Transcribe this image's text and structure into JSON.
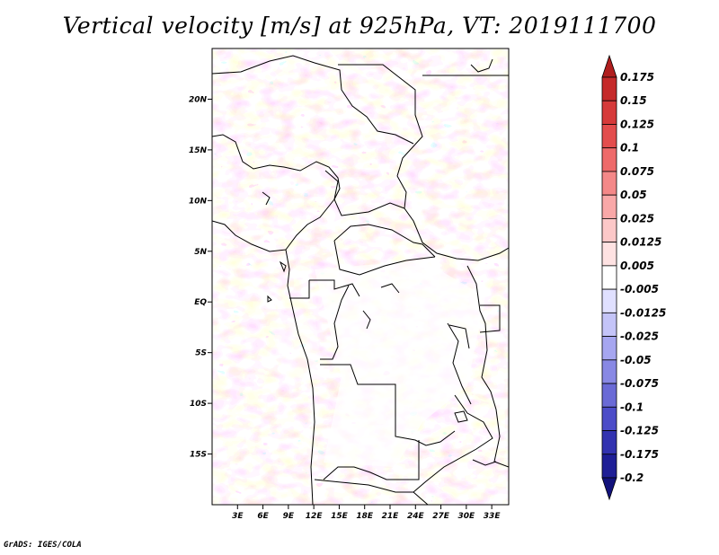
{
  "title": "Vertical velocity [m/s] at 925hPa, VT: 2019111700",
  "credit": "GrADS: IGES/COLA",
  "map": {
    "lon_range": [
      0,
      35
    ],
    "lat_range": [
      -20,
      25
    ],
    "lat_ticks": [
      {
        "value": 20,
        "label": "20N"
      },
      {
        "value": 15,
        "label": "15N"
      },
      {
        "value": 10,
        "label": "10N"
      },
      {
        "value": 5,
        "label": "5N"
      },
      {
        "value": 0,
        "label": "EQ"
      },
      {
        "value": -5,
        "label": "5S"
      },
      {
        "value": -10,
        "label": "10S"
      },
      {
        "value": -15,
        "label": "15S"
      }
    ],
    "lon_ticks": [
      {
        "value": 3,
        "label": "3E"
      },
      {
        "value": 6,
        "label": "6E"
      },
      {
        "value": 9,
        "label": "9E"
      },
      {
        "value": 12,
        "label": "12E"
      },
      {
        "value": 15,
        "label": "15E"
      },
      {
        "value": 18,
        "label": "18E"
      },
      {
        "value": 21,
        "label": "21E"
      },
      {
        "value": 24,
        "label": "24E"
      },
      {
        "value": 27,
        "label": "27E"
      },
      {
        "value": 30,
        "label": "30E"
      },
      {
        "value": 33,
        "label": "33E"
      }
    ]
  },
  "colorbar": {
    "labels": [
      "0.175",
      "0.15",
      "0.125",
      "0.1",
      "0.075",
      "0.05",
      "0.025",
      "0.0125",
      "0.005",
      "-0.005",
      "-0.0125",
      "-0.025",
      "-0.05",
      "-0.075",
      "-0.1",
      "-0.125",
      "-0.175",
      "-0.2"
    ],
    "colors": [
      "#b01e1e",
      "#c52a2a",
      "#d63a3a",
      "#e34d4d",
      "#ee6a6a",
      "#f48888",
      "#f9a8a8",
      "#fcc8c8",
      "#fee2e2",
      "#ffffff",
      "#e0e0ff",
      "#c4c4f8",
      "#a6a6f0",
      "#8888e4",
      "#6a6ad6",
      "#4c4cc8",
      "#3232b0",
      "#1e1e96",
      "#12127c"
    ]
  }
}
